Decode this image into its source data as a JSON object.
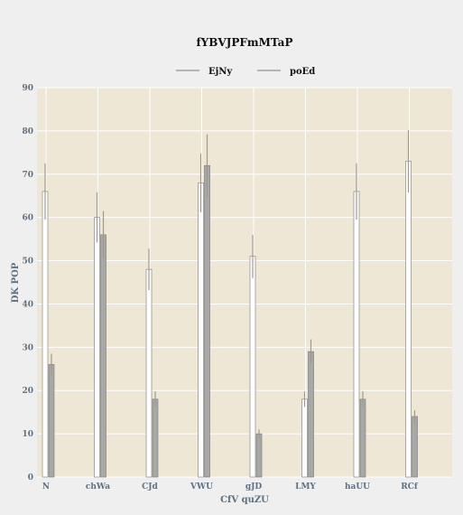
{
  "chart_data": {
    "type": "bar",
    "title": "fYBVJPFmMTaP",
    "xlabel": "CfV quZU",
    "ylabel": "DK POP",
    "ylim": [
      0,
      90
    ],
    "yticks": [
      0,
      10,
      20,
      30,
      40,
      50,
      60,
      70,
      80,
      90
    ],
    "categories": [
      "N",
      "chWa",
      "CJd",
      "VWU",
      "gJD",
      "LMY",
      "haUU",
      "RCf"
    ],
    "legend_position": "top",
    "grid": true,
    "series": [
      {
        "name": "EjNy",
        "color": "#ffffff",
        "values": [
          66,
          60,
          48,
          68,
          51,
          18,
          66,
          73
        ],
        "error": [
          6.5,
          5.8,
          4.8,
          6.8,
          5.0,
          1.8,
          6.5,
          7.2
        ]
      },
      {
        "name": "poEd",
        "color": "#a8a8a8",
        "values": [
          26,
          56,
          18,
          72,
          10,
          29,
          18,
          14
        ],
        "error": [
          2.5,
          5.5,
          1.8,
          7.2,
          1.0,
          2.8,
          1.8,
          1.4
        ]
      }
    ]
  },
  "colors": {
    "page_background": "#efefef",
    "plot_background": "#efe7d6",
    "grid": "#ffffff",
    "error_bar": "#a09a8c",
    "bar_stroke": "#777777"
  }
}
